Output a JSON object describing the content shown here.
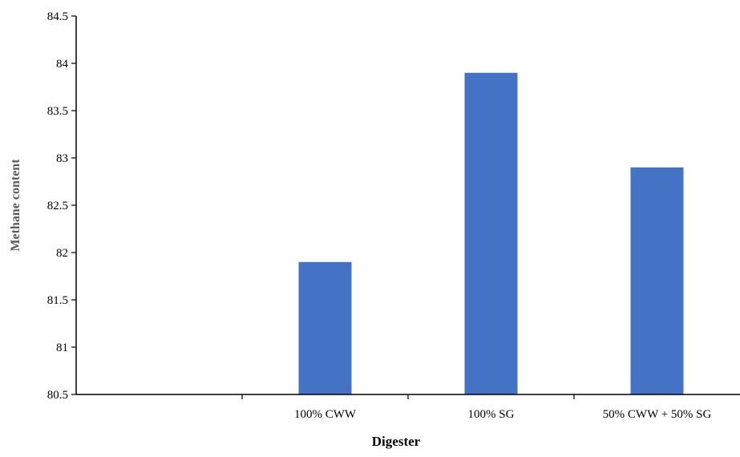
{
  "chart_data": {
    "type": "bar",
    "xlabel": "Digester",
    "ylabel": "Methane content",
    "ylim": [
      80.5,
      84.5
    ],
    "ytick_step": 0.5,
    "yticks": [
      "84.5",
      "84",
      "83.5",
      "83",
      "82.5",
      "82",
      "81.5",
      "81",
      "80.5"
    ],
    "categories": [
      "",
      "100% CWW",
      "100% SG",
      "50% CWW + 50% SG"
    ],
    "values": [
      null,
      81.9,
      83.9,
      82.9
    ],
    "bar_color": "#4472C4",
    "grid": false,
    "legend": "none"
  }
}
